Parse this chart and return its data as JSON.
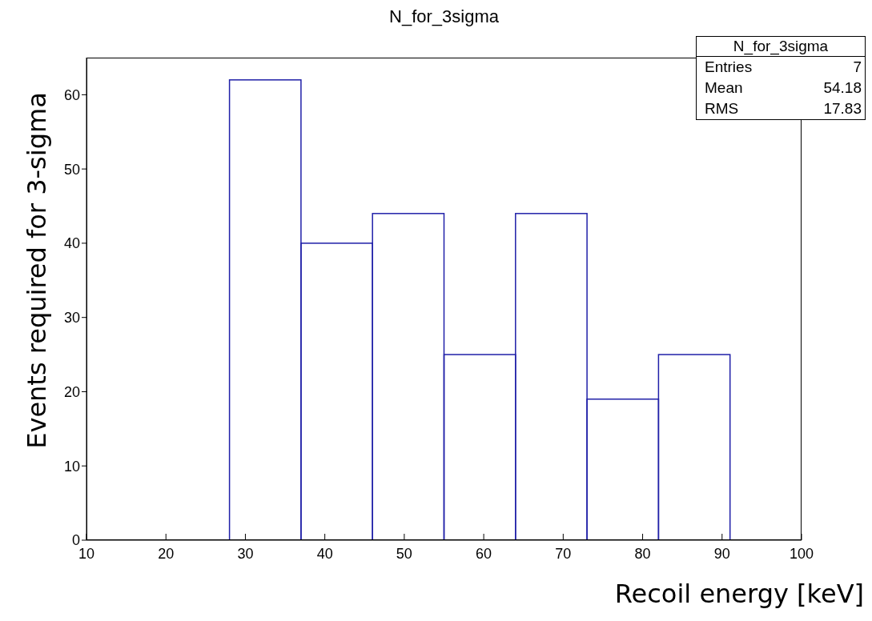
{
  "chart_data": {
    "type": "histogram",
    "title": "N_for_3sigma",
    "xlabel": "Recoil energy [keV]",
    "ylabel": "Events required  for  3-sigma",
    "bins": [
      28,
      37,
      46,
      55,
      64,
      73,
      82,
      91
    ],
    "values": [
      62,
      40,
      44,
      25,
      44,
      19,
      25
    ],
    "color": "#2020a8",
    "xlim": [
      10,
      100
    ],
    "xticks": [
      10,
      20,
      30,
      40,
      50,
      60,
      70,
      80,
      90,
      100
    ],
    "ylim": [
      0,
      65
    ],
    "yticks": [
      0,
      10,
      20,
      30,
      40,
      50,
      60
    ],
    "annotations": [
      "N_for_3sigma",
      "Entries",
      "7",
      "Mean",
      "54.18",
      "RMS",
      "17.83"
    ]
  }
}
